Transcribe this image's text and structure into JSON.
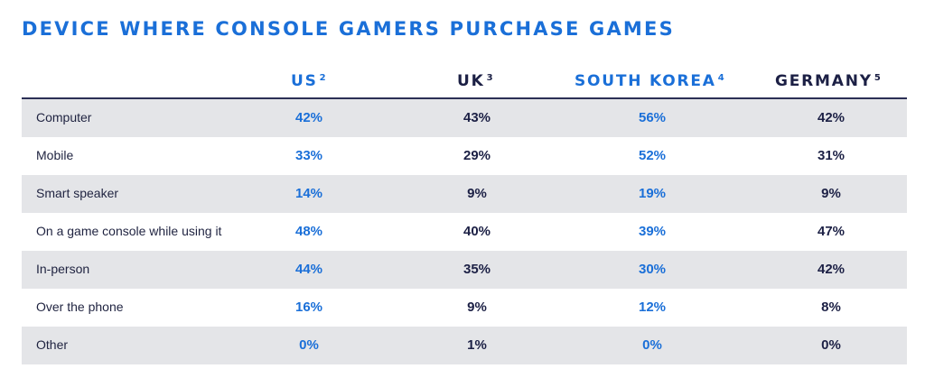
{
  "title": "DEVICE WHERE CONSOLE GAMERS PURCHASE GAMES",
  "colors": {
    "accent_blue": "#1a6fd8",
    "navy": "#1c2045",
    "row_shade": "#e4e5e8",
    "header_rule": "#2b2f55"
  },
  "columns": [
    {
      "label": "US",
      "sup": "2",
      "color": "blue"
    },
    {
      "label": "UK",
      "sup": "3",
      "color": "navy"
    },
    {
      "label": "SOUTH KOREA",
      "sup": "4",
      "color": "blue"
    },
    {
      "label": "GERMANY",
      "sup": "5",
      "color": "navy"
    }
  ],
  "rows": [
    {
      "label": "Computer",
      "values": [
        "42%",
        "43%",
        "56%",
        "42%"
      ]
    },
    {
      "label": "Mobile",
      "values": [
        "33%",
        "29%",
        "52%",
        "31%"
      ]
    },
    {
      "label": "Smart speaker",
      "values": [
        "14%",
        "9%",
        "19%",
        "9%"
      ]
    },
    {
      "label": "On a game console while using it",
      "values": [
        "48%",
        "40%",
        "39%",
        "47%"
      ]
    },
    {
      "label": "In-person",
      "values": [
        "44%",
        "35%",
        "30%",
        "42%"
      ]
    },
    {
      "label": "Over the phone",
      "values": [
        "16%",
        "9%",
        "12%",
        "8%"
      ]
    },
    {
      "label": "Other",
      "values": [
        "0%",
        "1%",
        "0%",
        "0%"
      ]
    }
  ],
  "chart_data": {
    "type": "table",
    "title": "DEVICE WHERE CONSOLE GAMERS PURCHASE GAMES",
    "columns": [
      "US²",
      "UK³",
      "SOUTH KOREA⁴",
      "GERMANY⁵"
    ],
    "categories": [
      "Computer",
      "Mobile",
      "Smart speaker",
      "On a game console while using it",
      "In-person",
      "Over the phone",
      "Other"
    ],
    "series": [
      {
        "name": "US²",
        "values": [
          42,
          33,
          14,
          48,
          44,
          16,
          0
        ]
      },
      {
        "name": "UK³",
        "values": [
          43,
          29,
          9,
          40,
          35,
          9,
          1
        ]
      },
      {
        "name": "SOUTH KOREA⁴",
        "values": [
          56,
          52,
          19,
          39,
          30,
          12,
          0
        ]
      },
      {
        "name": "GERMANY⁵",
        "values": [
          42,
          31,
          9,
          47,
          42,
          8,
          0
        ]
      }
    ]
  }
}
